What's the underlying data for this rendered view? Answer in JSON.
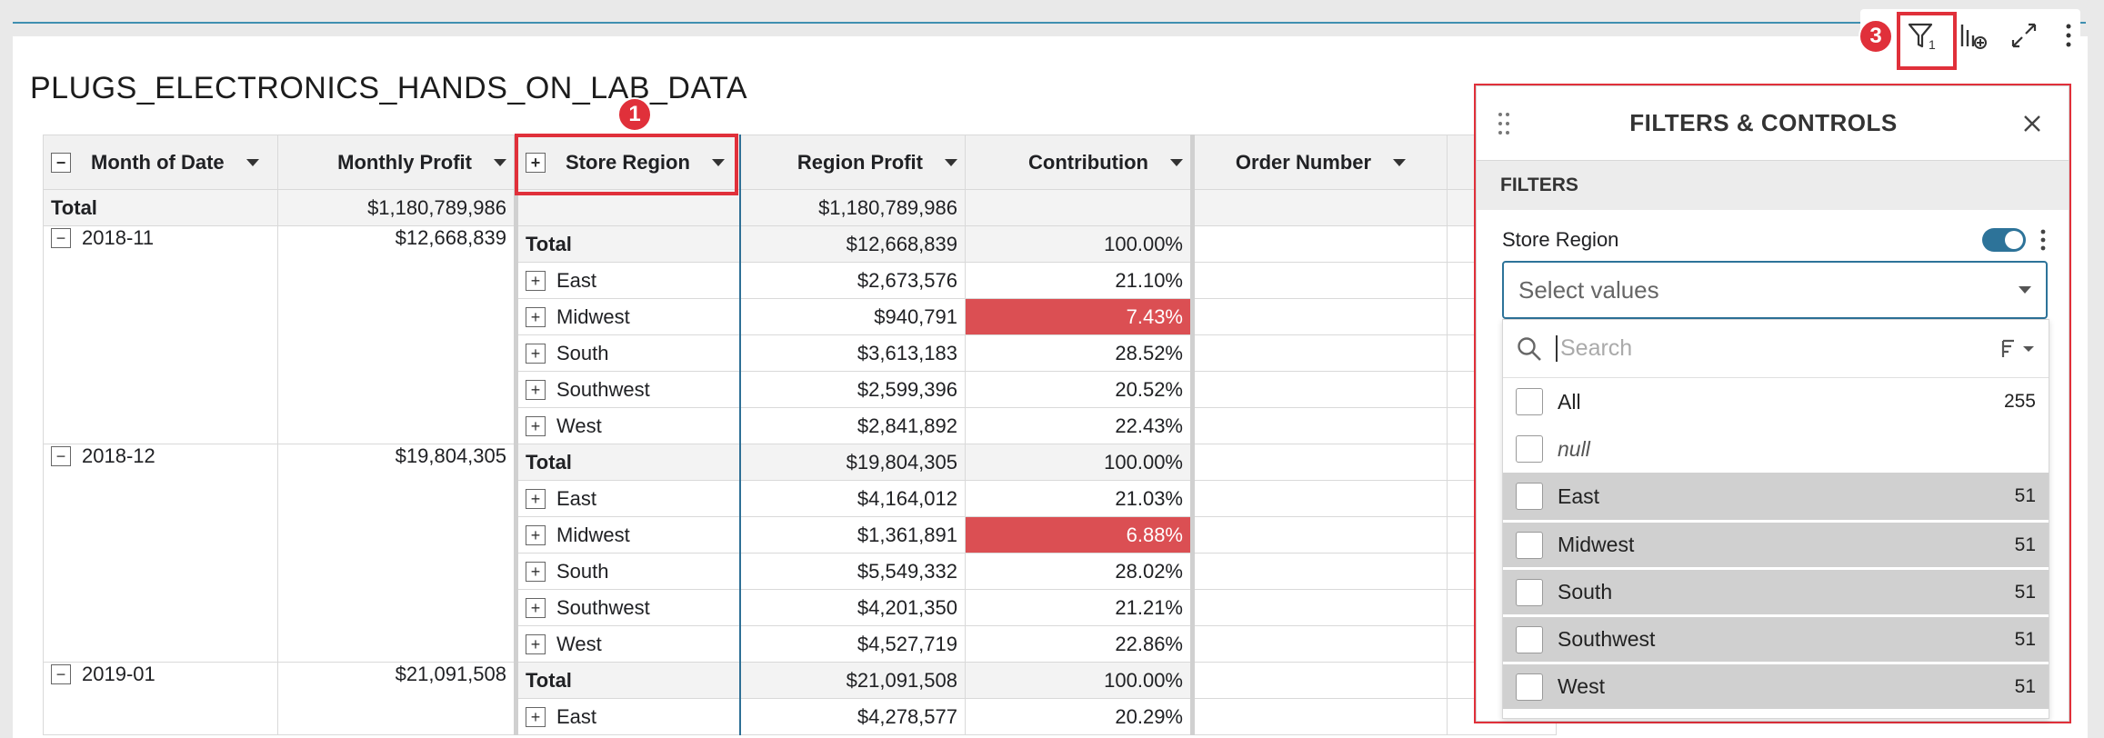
{
  "title": "PLUGS_ELECTRONICS_HANDS_ON_LAB_DATA",
  "columns": {
    "month": "Month of Date",
    "monthly_profit": "Monthly Profit",
    "store_region": "Store Region",
    "region_profit": "Region Profit",
    "contribution": "Contribution",
    "order_number": "Order Number"
  },
  "grand_total": {
    "label": "Total",
    "monthly_profit": "$1,180,789,986",
    "region_profit": "$1,180,789,986"
  },
  "groups": [
    {
      "month": "2018-11",
      "monthly_profit": "$12,668,839",
      "total": {
        "label": "Total",
        "region_profit": "$12,668,839",
        "contribution": "100.00%"
      },
      "rows": [
        {
          "region": "East",
          "profit": "$2,673,576",
          "contribution": "21.10%",
          "highlight": false
        },
        {
          "region": "Midwest",
          "profit": "$940,791",
          "contribution": "7.43%",
          "highlight": true
        },
        {
          "region": "South",
          "profit": "$3,613,183",
          "contribution": "28.52%",
          "highlight": false
        },
        {
          "region": "Southwest",
          "profit": "$2,599,396",
          "contribution": "20.52%",
          "highlight": false
        },
        {
          "region": "West",
          "profit": "$2,841,892",
          "contribution": "22.43%",
          "highlight": false
        }
      ]
    },
    {
      "month": "2018-12",
      "monthly_profit": "$19,804,305",
      "total": {
        "label": "Total",
        "region_profit": "$19,804,305",
        "contribution": "100.00%"
      },
      "rows": [
        {
          "region": "East",
          "profit": "$4,164,012",
          "contribution": "21.03%",
          "highlight": false
        },
        {
          "region": "Midwest",
          "profit": "$1,361,891",
          "contribution": "6.88%",
          "highlight": true
        },
        {
          "region": "South",
          "profit": "$5,549,332",
          "contribution": "28.02%",
          "highlight": false
        },
        {
          "region": "Southwest",
          "profit": "$4,201,350",
          "contribution": "21.21%",
          "highlight": false
        },
        {
          "region": "West",
          "profit": "$4,527,719",
          "contribution": "22.86%",
          "highlight": false
        }
      ]
    },
    {
      "month": "2019-01",
      "monthly_profit": "$21,091,508",
      "total": {
        "label": "Total",
        "region_profit": "$21,091,508",
        "contribution": "100.00%"
      },
      "rows": [
        {
          "region": "East",
          "profit": "$4,278,577",
          "contribution": "20.29%",
          "highlight": false
        }
      ]
    }
  ],
  "badges": {
    "one": "1",
    "two": "2",
    "three": "3"
  },
  "toolbar": {
    "filter_count": "1"
  },
  "panel": {
    "title": "FILTERS & CONTROLS",
    "section": "FILTERS",
    "control_label": "Store Region",
    "select_placeholder": "Select values",
    "search_placeholder": "Search",
    "options": [
      {
        "label": "All",
        "count": "255",
        "selected": false,
        "italic": false
      },
      {
        "label": "null",
        "count": "",
        "selected": false,
        "italic": true
      },
      {
        "label": "East",
        "count": "51",
        "selected": true,
        "italic": false
      },
      {
        "label": "Midwest",
        "count": "51",
        "selected": true,
        "italic": false
      },
      {
        "label": "South",
        "count": "51",
        "selected": true,
        "italic": false
      },
      {
        "label": "Southwest",
        "count": "51",
        "selected": true,
        "italic": false
      },
      {
        "label": "West",
        "count": "51",
        "selected": true,
        "italic": false
      }
    ]
  },
  "colors": {
    "accent": "#2d7399",
    "highlight": "#db4f53",
    "annotation": "#e0303a"
  },
  "icons": [
    "filter-icon",
    "add-chart-icon",
    "expand-icon",
    "more-vertical-icon",
    "drag-handle-icon",
    "close-icon",
    "search-icon",
    "sort-icon",
    "chevron-down-icon",
    "collapse-icon",
    "expand-row-icon"
  ]
}
